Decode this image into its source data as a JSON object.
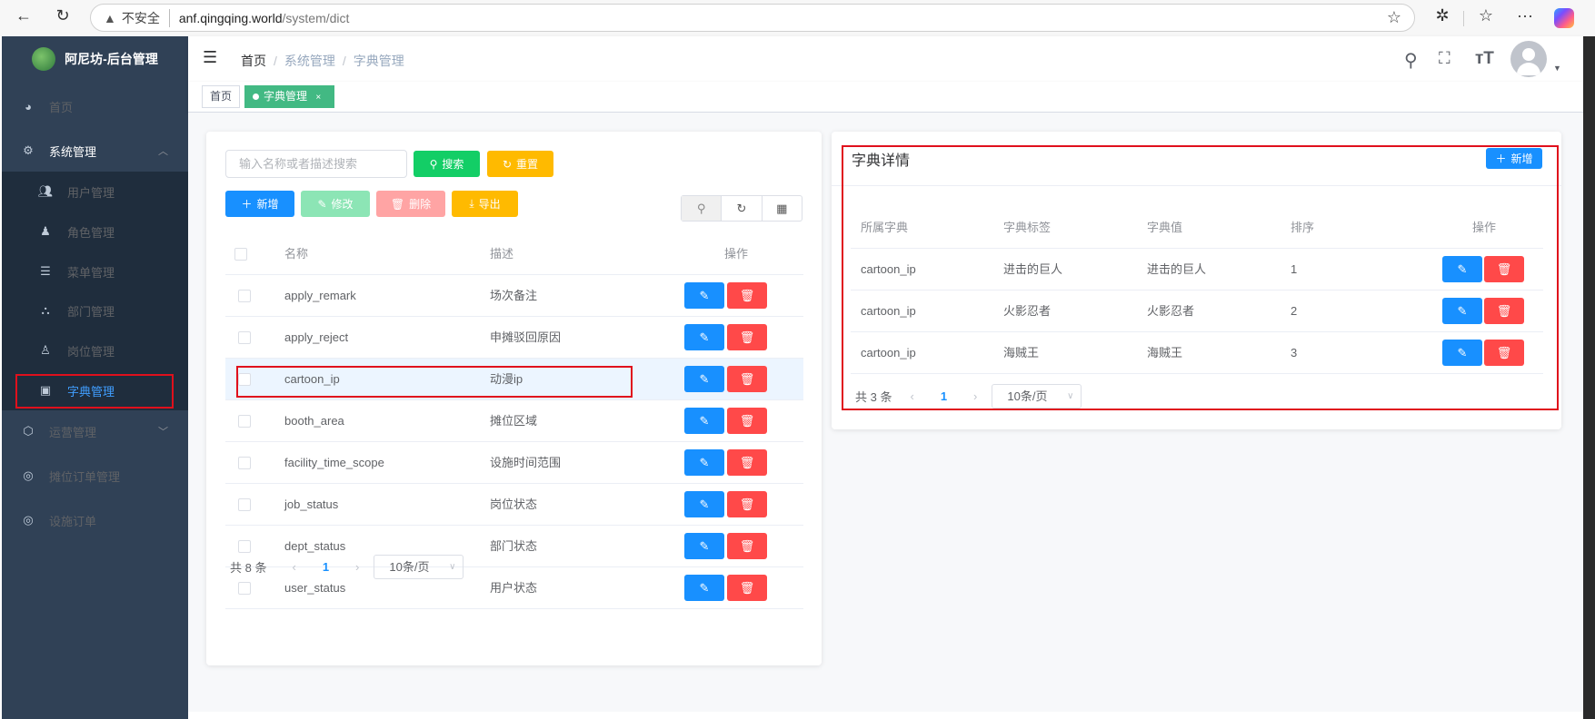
{
  "browser": {
    "security": "不安全",
    "url_host": "anf.qingqing.world",
    "url_path": "/system/dict"
  },
  "sidebar": {
    "title": "阿尼坊-后台管理",
    "items": [
      {
        "label": "首页",
        "icon": "dashboard-icon"
      },
      {
        "label": "系统管理",
        "icon": "gear-icon",
        "expanded": true
      },
      {
        "label": "用户管理",
        "icon": "user-icon"
      },
      {
        "label": "角色管理",
        "icon": "role-icon"
      },
      {
        "label": "菜单管理",
        "icon": "menu-list-icon"
      },
      {
        "label": "部门管理",
        "icon": "tree-icon"
      },
      {
        "label": "岗位管理",
        "icon": "post-icon"
      },
      {
        "label": "字典管理",
        "icon": "dict-icon",
        "active": true
      },
      {
        "label": "运营管理",
        "icon": "cube-icon"
      },
      {
        "label": "摊位订单管理",
        "icon": "order-icon"
      },
      {
        "label": "设施订单",
        "icon": "order-icon"
      }
    ]
  },
  "breadcrumb": [
    "首页",
    "系统管理",
    "字典管理"
  ],
  "tags": [
    {
      "label": "首页"
    },
    {
      "label": "字典管理",
      "active": true,
      "close": "×"
    }
  ],
  "dict": {
    "search_placeholder": "输入名称或者描述搜索",
    "search_value": "",
    "search_label": "搜索",
    "reset_label": "重置",
    "add_label": "新增",
    "edit_label": "修改",
    "delete_label": "删除",
    "export_label": "导出",
    "columns": [
      "名称",
      "描述",
      "操作"
    ],
    "rows": [
      {
        "name": "apply_remark",
        "desc": "场次备注"
      },
      {
        "name": "apply_reject",
        "desc": "申摊驳回原因"
      },
      {
        "name": "cartoon_ip",
        "desc": "动漫ip",
        "selected": true
      },
      {
        "name": "booth_area",
        "desc": "摊位区域"
      },
      {
        "name": "facility_time_scope",
        "desc": "设施时间范围"
      },
      {
        "name": "job_status",
        "desc": "岗位状态"
      },
      {
        "name": "dept_status",
        "desc": "部门状态"
      },
      {
        "name": "user_status",
        "desc": "用户状态"
      }
    ],
    "total": "共 8 条",
    "page": "1",
    "page_size": "10条/页"
  },
  "detail": {
    "title": "字典详情",
    "add_label": "新增",
    "columns": [
      "所属字典",
      "字典标签",
      "字典值",
      "排序",
      "操作"
    ],
    "rows": [
      {
        "dict": "cartoon_ip",
        "label": "进击的巨人",
        "value": "进击的巨人",
        "sort": "1"
      },
      {
        "dict": "cartoon_ip",
        "label": "火影忍者",
        "value": "火影忍者",
        "sort": "2"
      },
      {
        "dict": "cartoon_ip",
        "label": "海贼王",
        "value": "海贼王",
        "sort": "3"
      }
    ],
    "total": "共 3 条",
    "page": "1",
    "page_size": "10条/页"
  },
  "colors": {
    "primary": "#1890ff",
    "success": "#13ce66",
    "warning": "#ffba00",
    "danger": "#ff4949",
    "sidebar": "#304156",
    "tag_active": "#42b983",
    "highlight": "#e0101c"
  }
}
